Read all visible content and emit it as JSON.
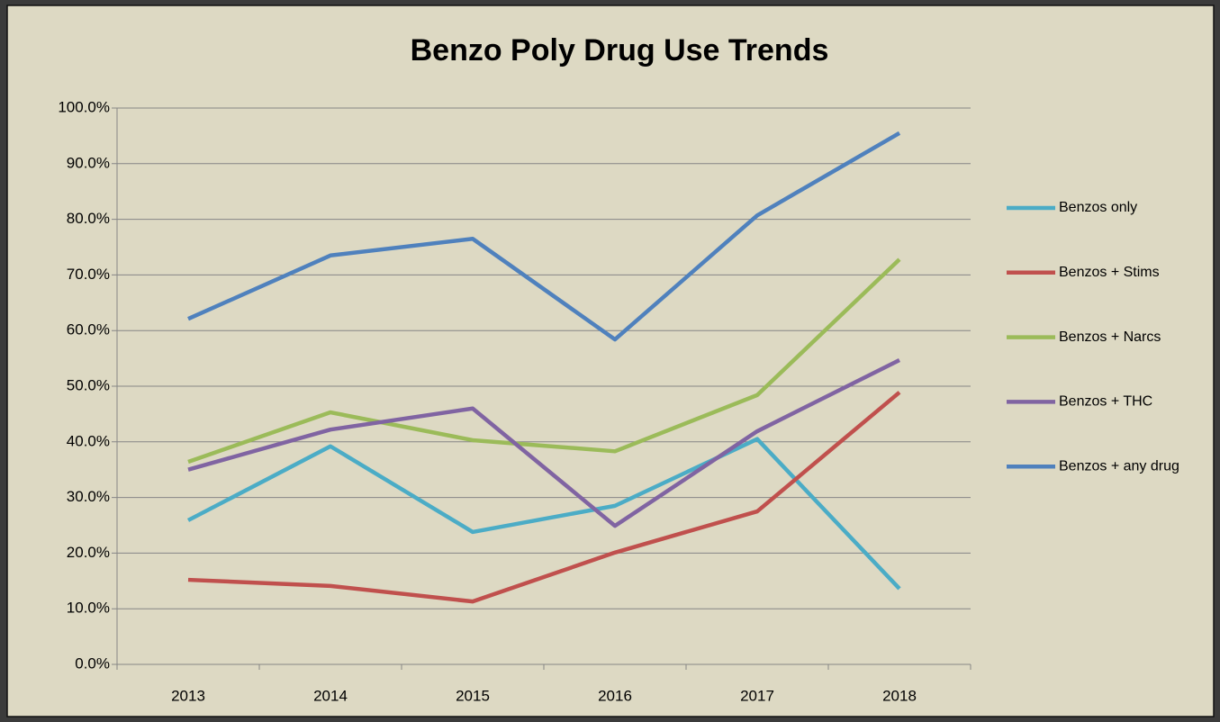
{
  "chart_data": {
    "type": "line",
    "title": "Benzo Poly Drug Use Trends",
    "categories": [
      "2013",
      "2014",
      "2015",
      "2016",
      "2017",
      "2018"
    ],
    "series": [
      {
        "name": "Benzos only",
        "color": "#4bacc6",
        "values": [
          25.9,
          39.2,
          23.8,
          28.5,
          40.5,
          13.6
        ]
      },
      {
        "name": "Benzos + Stims",
        "color": "#c0504d",
        "values": [
          15.2,
          14.1,
          11.3,
          20.1,
          27.5,
          48.9
        ]
      },
      {
        "name": "Benzos + Narcs",
        "color": "#9bbb59",
        "values": [
          36.4,
          45.3,
          40.3,
          38.3,
          48.4,
          72.8
        ]
      },
      {
        "name": "Benzos + THC",
        "color": "#8064a2",
        "values": [
          35.0,
          42.2,
          46.0,
          24.9,
          41.9,
          54.7
        ]
      },
      {
        "name": "Benzos + any drug",
        "color": "#4f81bd",
        "values": [
          62.1,
          73.5,
          76.5,
          58.4,
          80.7,
          95.5
        ]
      }
    ],
    "ylim": [
      0,
      100
    ],
    "yticks": [
      {
        "value": 0,
        "label": "0.0%"
      },
      {
        "value": 10,
        "label": "10.0%"
      },
      {
        "value": 20,
        "label": "20.0%"
      },
      {
        "value": 30,
        "label": "30.0%"
      },
      {
        "value": 40,
        "label": "40.0%"
      },
      {
        "value": 50,
        "label": "50.0%"
      },
      {
        "value": 60,
        "label": "60.0%"
      },
      {
        "value": 70,
        "label": "70.0%"
      },
      {
        "value": 80,
        "label": "80.0%"
      },
      {
        "value": 90,
        "label": "90.0%"
      },
      {
        "value": 100,
        "label": "100.0%"
      }
    ],
    "grid": true,
    "legend": "right"
  }
}
